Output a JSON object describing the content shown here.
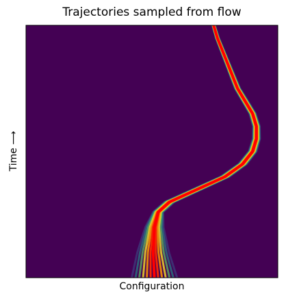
{
  "chart_data": {
    "type": "line",
    "title": "Trajectories sampled from flow",
    "xlabel": "Configuration",
    "ylabel": "Time ⟶",
    "xlim": [
      0,
      1
    ],
    "ylim": [
      0,
      1
    ],
    "xticks": [],
    "yticks": [],
    "grid": false,
    "legend": "none",
    "background_color": "#440154",
    "colors": [
      "#3b528b",
      "#21918c",
      "#5ec962",
      "#fde725",
      "#ff9900",
      "#ff2a00",
      "#ff0000"
    ],
    "center_trajectory": [
      {
        "t": 0.0,
        "x": 0.51
      },
      {
        "t": 0.1,
        "x": 0.505
      },
      {
        "t": 0.2,
        "x": 0.51
      },
      {
        "t": 0.26,
        "x": 0.525
      },
      {
        "t": 0.3,
        "x": 0.57
      },
      {
        "t": 0.35,
        "x": 0.68
      },
      {
        "t": 0.4,
        "x": 0.79
      },
      {
        "t": 0.45,
        "x": 0.86
      },
      {
        "t": 0.5,
        "x": 0.9
      },
      {
        "t": 0.55,
        "x": 0.915
      },
      {
        "t": 0.6,
        "x": 0.915
      },
      {
        "t": 0.65,
        "x": 0.9
      },
      {
        "t": 0.7,
        "x": 0.87
      },
      {
        "t": 0.75,
        "x": 0.84
      },
      {
        "t": 0.8,
        "x": 0.82
      },
      {
        "t": 0.85,
        "x": 0.8
      },
      {
        "t": 0.9,
        "x": 0.78
      },
      {
        "t": 0.95,
        "x": 0.76
      },
      {
        "t": 1.0,
        "x": 0.745
      }
    ],
    "trajectory_offsets_at_t0": [
      -0.09,
      -0.075,
      -0.06,
      -0.045,
      -0.03,
      -0.015,
      0,
      0.015,
      0.03,
      0.045,
      0.06,
      0.075,
      0.09
    ]
  }
}
